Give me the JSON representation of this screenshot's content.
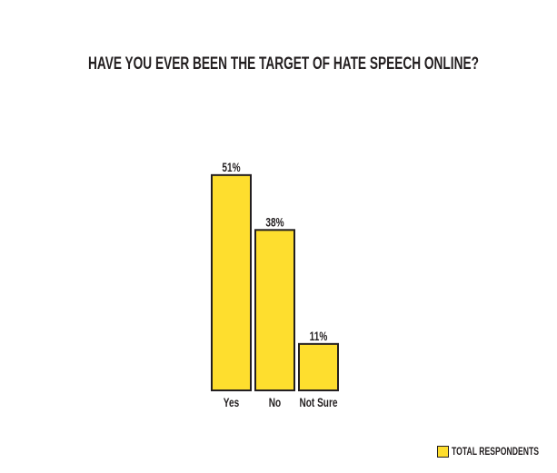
{
  "chart_data": {
    "type": "bar",
    "title": "HAVE YOU EVER BEEN THE TARGET OF HATE SPEECH ONLINE?",
    "categories": [
      "Yes",
      "No",
      "Not Sure"
    ],
    "values": [
      51,
      38,
      11
    ],
    "data_labels": [
      "51%",
      "38%",
      "11%"
    ],
    "series": [
      {
        "name": "TOTAL RESPONDENTS",
        "values": [
          51,
          38,
          11
        ]
      }
    ],
    "ylim": [
      0,
      51
    ],
    "grid": false,
    "legend": "bottom-right",
    "colors": {
      "bar": "#fede2e",
      "outline": "#231f20"
    }
  }
}
